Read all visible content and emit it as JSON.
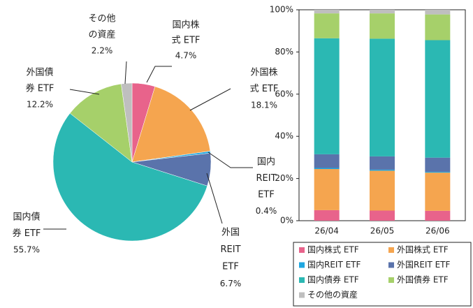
{
  "chart_data": [
    {
      "type": "pie",
      "categories": [
        [
          "国内株",
          "式 ETF"
        ],
        [
          "外国株",
          "式 ETF"
        ],
        [
          "国内",
          "REIT",
          "ETF"
        ],
        [
          "外国",
          "REIT",
          "ETF"
        ],
        [
          "国内債",
          "券 ETF"
        ],
        [
          "外国債",
          "券 ETF"
        ],
        [
          "その他",
          "の資産"
        ]
      ],
      "values": [
        4.7,
        18.1,
        0.4,
        6.7,
        55.7,
        12.2,
        2.2
      ],
      "value_labels": [
        "4.7%",
        "18.1%",
        "0.4%",
        "6.7%",
        "55.7%",
        "12.2%",
        "2.2%"
      ],
      "colors": [
        "#e8638b",
        "#f5a54f",
        "#1fa7e0",
        "#5a73ab",
        "#2bb8b3",
        "#a6d06a",
        "#bfbfbf"
      ]
    },
    {
      "type": "stacked-bar",
      "categories": [
        "26/04",
        "26/05",
        "26/06"
      ],
      "series": [
        {
          "name": "国内株式 ETF",
          "color": "#e8638b",
          "values": [
            5.0,
            4.8,
            4.7
          ]
        },
        {
          "name": "外国株式 ETF",
          "color": "#f5a54f",
          "values": [
            19.5,
            18.9,
            18.1
          ]
        },
        {
          "name": "国内REIT ETF",
          "color": "#1fa7e0",
          "values": [
            0.5,
            0.5,
            0.4
          ]
        },
        {
          "name": "外国REIT ETF",
          "color": "#5a73ab",
          "values": [
            6.5,
            6.3,
            6.7
          ]
        },
        {
          "name": "国内債券 ETF",
          "color": "#2bb8b3",
          "values": [
            55.0,
            55.8,
            55.7
          ]
        },
        {
          "name": "外国債券 ETF",
          "color": "#a6d06a",
          "values": [
            11.8,
            12.0,
            12.2
          ]
        },
        {
          "name": "その他の資産",
          "color": "#bfbfbf",
          "values": [
            1.7,
            1.7,
            2.2
          ]
        }
      ],
      "ylim": [
        0,
        100
      ],
      "yticks": [
        {
          "value": 0,
          "label": "0%"
        },
        {
          "value": 20,
          "label": "20%"
        },
        {
          "value": 40,
          "label": "40%"
        },
        {
          "value": 60,
          "label": "60%"
        },
        {
          "value": 80,
          "label": "80%"
        },
        {
          "value": 100,
          "label": "100%"
        }
      ]
    }
  ]
}
